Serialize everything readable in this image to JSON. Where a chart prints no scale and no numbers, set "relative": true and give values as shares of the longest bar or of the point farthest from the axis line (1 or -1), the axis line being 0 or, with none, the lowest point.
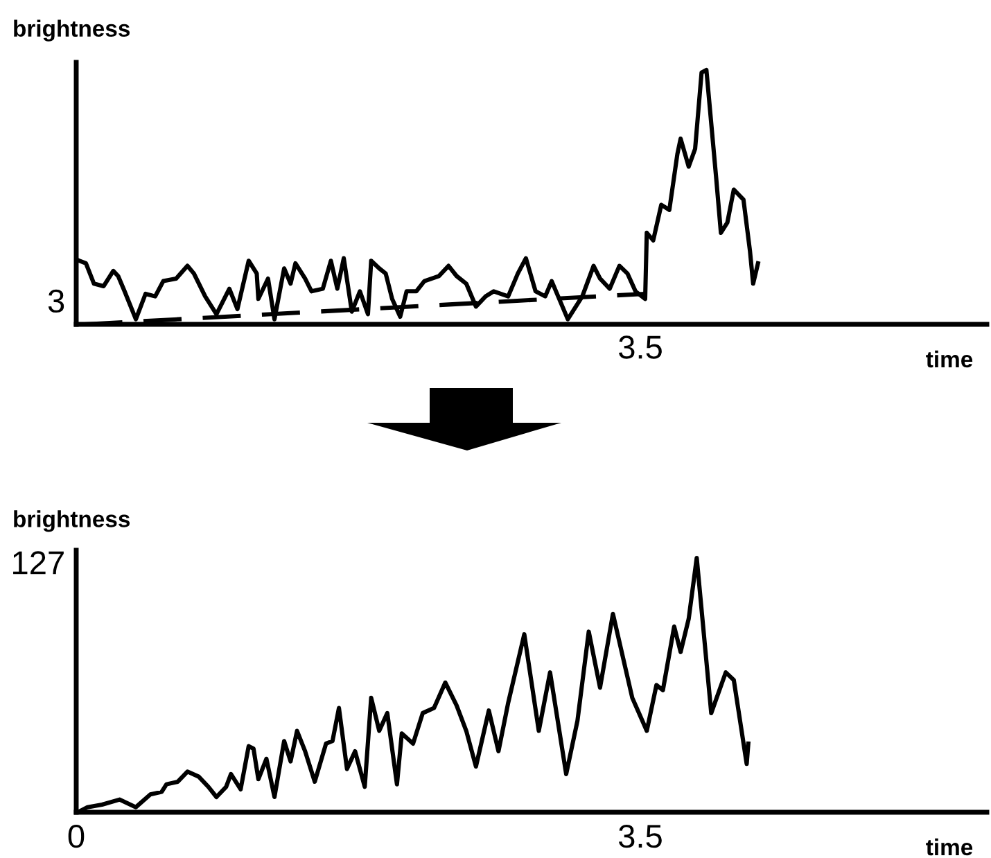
{
  "chart_data": [
    {
      "type": "line",
      "relative": true,
      "ylabel": "brightness",
      "xlabel": "time",
      "xlim": [
        0,
        5.65
      ],
      "grid": false,
      "legend": false,
      "annotations": [
        "3",
        "3.5"
      ],
      "series": [
        {
          "color": "#000000",
          "line_style": "solid",
          "x": [
            0.02,
            0.06,
            0.11,
            0.17,
            0.23,
            0.26,
            0.3,
            0.37,
            0.43,
            0.49,
            0.54,
            0.62,
            0.69,
            0.73,
            0.8,
            0.87,
            0.95,
            1.0,
            1.07,
            1.12,
            1.13,
            1.19,
            1.23,
            1.29,
            1.33,
            1.36,
            1.42,
            1.46,
            1.53,
            1.58,
            1.62,
            1.66,
            1.71,
            1.76,
            1.81,
            1.83,
            1.88,
            1.92,
            1.96,
            2.01,
            2.05,
            2.11,
            2.16,
            2.25,
            2.31,
            2.36,
            2.42,
            2.48,
            2.54,
            2.59,
            2.68,
            2.74,
            2.79,
            2.85,
            2.91,
            2.95,
            2.99,
            3.05,
            3.14,
            3.21,
            3.25,
            3.31,
            3.37,
            3.42,
            3.47,
            3.53,
            3.54,
            3.58,
            3.63,
            3.68,
            3.73,
            3.75,
            3.8,
            3.84,
            3.88,
            3.91,
            3.97,
            4.0,
            4.04,
            4.08,
            4.14,
            4.18,
            4.2,
            4.23
          ],
          "values": [
            0.25,
            0.24,
            0.16,
            0.15,
            0.21,
            0.19,
            0.13,
            0.02,
            0.12,
            0.11,
            0.17,
            0.18,
            0.23,
            0.2,
            0.11,
            0.04,
            0.14,
            0.06,
            0.25,
            0.2,
            0.1,
            0.18,
            0.02,
            0.22,
            0.16,
            0.24,
            0.18,
            0.13,
            0.14,
            0.25,
            0.14,
            0.26,
            0.05,
            0.13,
            0.04,
            0.25,
            0.22,
            0.2,
            0.1,
            0.03,
            0.13,
            0.13,
            0.17,
            0.19,
            0.23,
            0.19,
            0.16,
            0.07,
            0.11,
            0.13,
            0.11,
            0.2,
            0.26,
            0.13,
            0.11,
            0.17,
            0.11,
            0.02,
            0.11,
            0.23,
            0.18,
            0.14,
            0.23,
            0.2,
            0.13,
            0.1,
            0.36,
            0.33,
            0.47,
            0.45,
            0.67,
            0.73,
            0.62,
            0.69,
            0.99,
            1.0,
            0.58,
            0.36,
            0.4,
            0.53,
            0.49,
            0.29,
            0.16,
            0.24
          ]
        },
        {
          "color": "#000000",
          "line_style": "dashed",
          "x": [
            0.05,
            3.53
          ],
          "values": [
            0,
            0.12
          ]
        }
      ]
    },
    {
      "type": "line",
      "relative": true,
      "ylabel": "brightness",
      "xlabel": "time",
      "xlim": [
        0,
        5.65
      ],
      "xticks": [
        0,
        3.5
      ],
      "grid": false,
      "legend": false,
      "annotations": [
        "127"
      ],
      "series": [
        {
          "color": "#000000",
          "line_style": "solid",
          "x": [
            0.01,
            0.07,
            0.16,
            0.27,
            0.37,
            0.46,
            0.53,
            0.56,
            0.63,
            0.69,
            0.76,
            0.82,
            0.87,
            0.93,
            0.96,
            1.02,
            1.07,
            1.1,
            1.13,
            1.18,
            1.23,
            1.29,
            1.33,
            1.37,
            1.42,
            1.48,
            1.55,
            1.59,
            1.63,
            1.68,
            1.73,
            1.79,
            1.83,
            1.88,
            1.93,
            1.99,
            2.02,
            2.09,
            2.15,
            2.22,
            2.29,
            2.36,
            2.42,
            2.48,
            2.56,
            2.62,
            2.68,
            2.78,
            2.87,
            2.94,
            3.04,
            3.11,
            3.18,
            3.25,
            3.33,
            3.45,
            3.54,
            3.6,
            3.64,
            3.71,
            3.75,
            3.8,
            3.85,
            3.94,
            4.03,
            4.08,
            4.16,
            4.17
          ],
          "values": [
            0,
            0.02,
            0.03,
            0.05,
            0.02,
            0.07,
            0.08,
            0.11,
            0.12,
            0.16,
            0.14,
            0.1,
            0.06,
            0.1,
            0.15,
            0.09,
            0.26,
            0.25,
            0.13,
            0.21,
            0.06,
            0.28,
            0.2,
            0.32,
            0.24,
            0.12,
            0.27,
            0.28,
            0.41,
            0.17,
            0.24,
            0.1,
            0.45,
            0.32,
            0.39,
            0.11,
            0.31,
            0.27,
            0.39,
            0.41,
            0.51,
            0.42,
            0.32,
            0.18,
            0.4,
            0.24,
            0.43,
            0.7,
            0.32,
            0.55,
            0.15,
            0.36,
            0.71,
            0.49,
            0.78,
            0.45,
            0.32,
            0.5,
            0.48,
            0.73,
            0.63,
            0.76,
            1.0,
            0.39,
            0.55,
            0.52,
            0.19,
            0.27
          ]
        }
      ]
    }
  ]
}
